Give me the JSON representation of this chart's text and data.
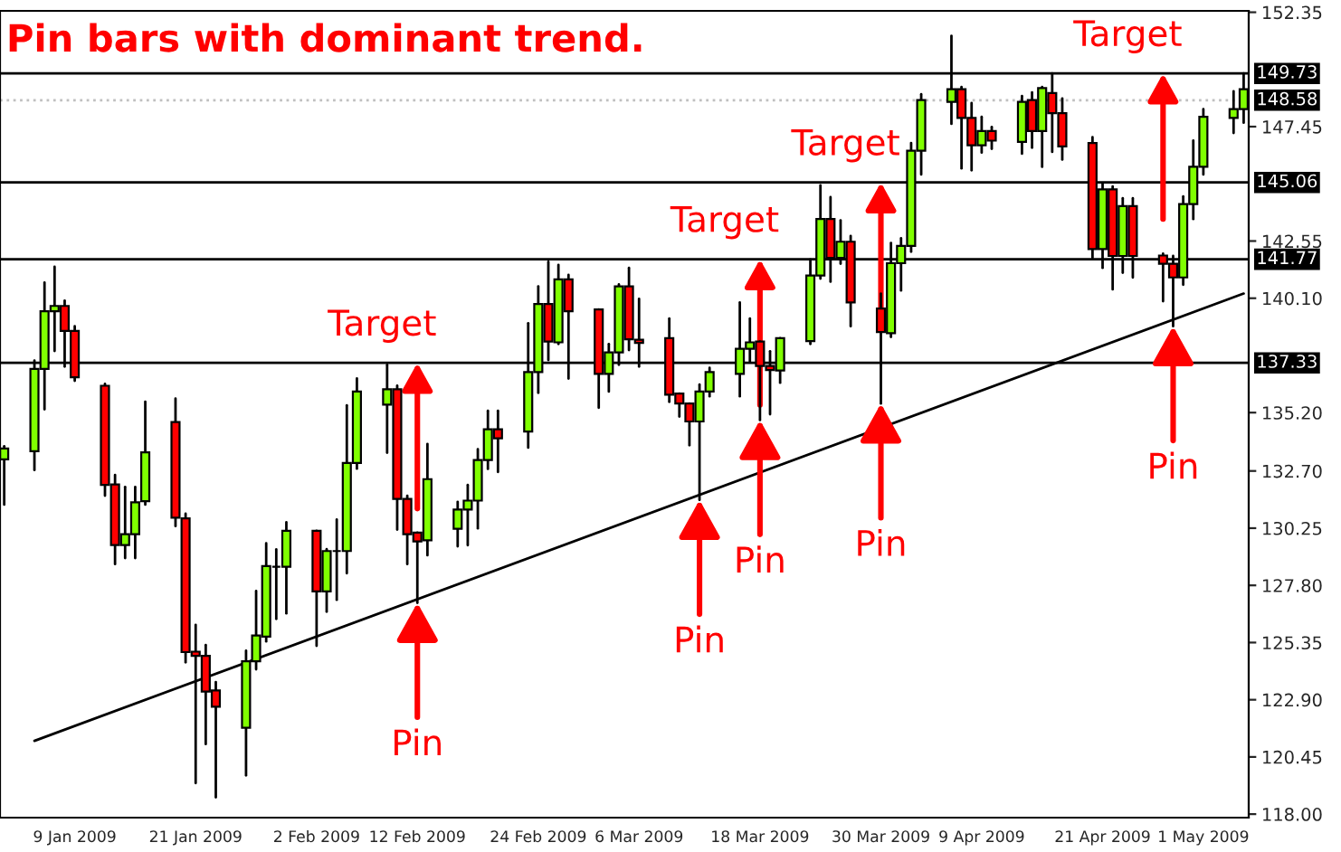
{
  "chart_data": {
    "type": "candlestick",
    "title": "Pin bars with dominant trend.",
    "x": [
      "2009-01-02",
      "2009-01-05",
      "2009-01-06",
      "2009-01-07",
      "2009-01-08",
      "2009-01-09",
      "2009-01-12",
      "2009-01-13",
      "2009-01-14",
      "2009-01-15",
      "2009-01-16",
      "2009-01-19",
      "2009-01-20",
      "2009-01-21",
      "2009-01-22",
      "2009-01-23",
      "2009-01-26",
      "2009-01-27",
      "2009-01-28",
      "2009-01-29",
      "2009-01-30",
      "2009-02-02",
      "2009-02-03",
      "2009-02-04",
      "2009-02-05",
      "2009-02-06",
      "2009-02-09",
      "2009-02-10",
      "2009-02-11",
      "2009-02-12",
      "2009-02-13",
      "2009-02-16",
      "2009-02-17",
      "2009-02-18",
      "2009-02-19",
      "2009-02-20",
      "2009-02-23",
      "2009-02-24",
      "2009-02-25",
      "2009-02-26",
      "2009-02-27",
      "2009-03-02",
      "2009-03-03",
      "2009-03-04",
      "2009-03-05",
      "2009-03-06",
      "2009-03-09",
      "2009-03-10",
      "2009-03-11",
      "2009-03-12",
      "2009-03-13",
      "2009-03-16",
      "2009-03-17",
      "2009-03-18",
      "2009-03-19",
      "2009-03-20",
      "2009-03-23",
      "2009-03-24",
      "2009-03-25",
      "2009-03-26",
      "2009-03-27",
      "2009-03-30",
      "2009-03-31",
      "2009-04-01",
      "2009-04-02",
      "2009-04-03",
      "2009-04-06",
      "2009-04-07",
      "2009-04-08",
      "2009-04-09",
      "2009-04-10",
      "2009-04-13",
      "2009-04-14",
      "2009-04-15",
      "2009-04-16",
      "2009-04-17",
      "2009-04-20",
      "2009-04-21",
      "2009-04-22",
      "2009-04-23",
      "2009-04-24",
      "2009-04-27",
      "2009-04-28",
      "2009-04-29",
      "2009-04-30",
      "2009-05-01",
      "2009-05-04",
      "2009-05-05"
    ],
    "ohlc": [
      [
        133.2,
        133.76,
        131.26,
        133.66
      ],
      [
        133.55,
        137.43,
        132.74,
        137.07
      ],
      [
        137.07,
        140.77,
        135.34,
        139.54
      ],
      [
        139.54,
        141.45,
        137.84,
        139.77
      ],
      [
        139.77,
        140.0,
        137.17,
        138.7
      ],
      [
        138.7,
        138.9,
        136.56,
        136.71
      ],
      [
        136.35,
        136.43,
        131.64,
        132.1
      ],
      [
        132.12,
        132.53,
        128.71,
        129.53
      ],
      [
        129.53,
        132.02,
        128.97,
        129.99
      ],
      [
        129.99,
        132.02,
        128.97,
        131.36
      ],
      [
        131.41,
        135.67,
        131.26,
        133.5
      ],
      [
        134.8,
        135.8,
        130.34,
        130.7
      ],
      [
        130.67,
        130.87,
        124.5,
        124.94
      ],
      [
        124.96,
        126.11,
        119.33,
        124.78
      ],
      [
        124.78,
        125.24,
        121.0,
        123.25
      ],
      [
        123.3,
        123.66,
        118.72,
        122.6
      ],
      [
        121.7,
        125.0,
        119.66,
        124.55
      ],
      [
        124.55,
        127.56,
        124.2,
        125.65
      ],
      [
        125.6,
        129.6,
        125.4,
        128.63
      ],
      [
        128.6,
        129.34,
        126.36,
        128.6
      ],
      [
        128.6,
        130.5,
        126.6,
        130.14
      ],
      [
        130.14,
        130.14,
        125.21,
        127.54
      ],
      [
        127.54,
        129.35,
        126.67,
        129.27
      ],
      [
        129.27,
        130.62,
        127.18,
        129.27
      ],
      [
        129.27,
        135.51,
        128.32,
        133.04
      ],
      [
        133.04,
        136.66,
        132.8,
        136.1
      ],
      [
        135.54,
        137.25,
        133.48,
        136.2
      ],
      [
        136.2,
        136.35,
        130.19,
        131.5
      ],
      [
        131.5,
        131.64,
        128.71,
        129.99
      ],
      [
        130.06,
        130.06,
        127.05,
        129.68
      ],
      [
        129.73,
        133.86,
        129.09,
        132.35
      ],
      [
        130.22,
        131.38,
        129.47,
        131.05
      ],
      [
        131.05,
        132.1,
        129.52,
        131.43
      ],
      [
        131.43,
        133.63,
        130.24,
        133.17
      ],
      [
        133.17,
        135.28,
        132.79,
        134.49
      ],
      [
        134.49,
        135.28,
        132.66,
        134.1
      ],
      [
        134.39,
        139.03,
        133.7,
        136.94
      ],
      [
        136.94,
        140.61,
        136.05,
        139.85
      ],
      [
        139.85,
        141.66,
        137.45,
        138.24
      ],
      [
        138.21,
        141.53,
        138.14,
        140.91
      ],
      [
        140.91,
        141.1,
        136.66,
        139.54
      ],
      [
        139.62,
        139.62,
        135.41,
        136.86
      ],
      [
        136.86,
        138.14,
        136.1,
        137.78
      ],
      [
        137.78,
        140.69,
        137.25,
        140.61
      ],
      [
        140.61,
        141.4,
        137.88,
        138.34
      ],
      [
        138.32,
        140.07,
        137.17,
        138.19
      ],
      [
        138.39,
        139.23,
        135.66,
        135.97
      ],
      [
        136.02,
        136.02,
        135.03,
        135.59
      ],
      [
        135.59,
        135.59,
        133.8,
        134.82
      ],
      [
        134.82,
        136.4,
        131.46,
        136.1
      ],
      [
        136.1,
        137.12,
        135.9,
        136.94
      ],
      [
        136.86,
        139.92,
        135.9,
        137.93
      ],
      [
        137.93,
        139.23,
        137.37,
        138.21
      ],
      [
        138.24,
        138.24,
        134.88,
        137.2
      ],
      [
        137.2,
        137.83,
        135.13,
        137.02
      ],
      [
        137.0,
        138.39,
        136.48,
        138.39
      ],
      [
        138.26,
        141.76,
        138.14,
        141.07
      ],
      [
        141.07,
        144.94,
        140.94,
        143.49
      ],
      [
        143.49,
        144.43,
        140.81,
        141.83
      ],
      [
        141.83,
        143.44,
        141.58,
        142.52
      ],
      [
        142.52,
        142.77,
        138.9,
        139.92
      ],
      [
        139.66,
        140.3,
        135.59,
        138.65
      ],
      [
        138.6,
        142.47,
        138.44,
        141.6
      ],
      [
        141.6,
        142.67,
        140.43,
        142.34
      ],
      [
        142.34,
        146.75,
        142.09,
        146.42
      ],
      [
        146.42,
        148.84,
        145.4,
        148.59
      ],
      [
        148.51,
        151.34,
        147.57,
        149.05
      ],
      [
        149.05,
        149.15,
        145.66,
        147.82
      ],
      [
        147.82,
        148.46,
        145.58,
        146.65
      ],
      [
        146.65,
        147.87,
        146.34,
        147.26
      ],
      [
        147.26,
        147.44,
        146.5,
        146.85
      ],
      [
        146.8,
        148.76,
        146.29,
        148.51
      ],
      [
        148.59,
        148.92,
        146.55,
        147.26
      ],
      [
        147.26,
        149.15,
        145.73,
        149.1
      ],
      [
        148.89,
        149.73,
        146.37,
        148.03
      ],
      [
        148.03,
        148.66,
        146.04,
        146.6
      ],
      [
        146.75,
        147.0,
        141.83,
        142.21
      ],
      [
        142.21,
        145.02,
        141.4,
        144.76
      ],
      [
        144.76,
        144.89,
        140.48,
        141.91
      ],
      [
        141.91,
        144.38,
        141.19,
        144.05
      ],
      [
        144.05,
        144.38,
        140.99,
        141.91
      ],
      [
        141.93,
        142.01,
        139.97,
        141.58
      ],
      [
        141.58,
        141.91,
        138.9,
        140.99
      ],
      [
        140.99,
        144.46,
        140.68,
        144.13
      ],
      [
        144.13,
        146.85,
        143.49,
        145.73
      ],
      [
        145.73,
        148.2,
        145.4,
        147.87
      ],
      [
        147.82,
        148.97,
        147.18,
        148.2
      ],
      [
        148.2,
        149.73,
        147.62,
        149.05
      ]
    ],
    "colors": [
      "#80ff00",
      "#80ff00",
      "#80ff00",
      "#80ff00",
      "#ff0000",
      "#ff0000",
      "#ff0000",
      "#ff0000",
      "#80ff00",
      "#80ff00",
      "#80ff00",
      "#ff0000",
      "#ff0000",
      "#ff0000",
      "#ff0000",
      "#ff0000",
      "#80ff00",
      "#80ff00",
      "#80ff00",
      "#000000",
      "#80ff00",
      "#ff0000",
      "#80ff00",
      "#000000",
      "#80ff00",
      "#80ff00",
      "#80ff00",
      "#ff0000",
      "#ff0000",
      "#ff0000",
      "#80ff00",
      "#80ff00",
      "#80ff00",
      "#80ff00",
      "#80ff00",
      "#ff0000",
      "#80ff00",
      "#80ff00",
      "#ff0000",
      "#80ff00",
      "#ff0000",
      "#ff0000",
      "#80ff00",
      "#80ff00",
      "#ff0000",
      "#ff0000",
      "#ff0000",
      "#ff0000",
      "#ff0000",
      "#80ff00",
      "#80ff00",
      "#80ff00",
      "#80ff00",
      "#ff0000",
      "#ff0000",
      "#80ff00",
      "#80ff00",
      "#80ff00",
      "#ff0000",
      "#80ff00",
      "#ff0000",
      "#ff0000",
      "#80ff00",
      "#80ff00",
      "#80ff00",
      "#80ff00",
      "#80ff00",
      "#ff0000",
      "#ff0000",
      "#80ff00",
      "#ff0000",
      "#80ff00",
      "#ff0000",
      "#80ff00",
      "#ff0000",
      "#ff0000",
      "#ff0000",
      "#80ff00",
      "#ff0000",
      "#80ff00",
      "#ff0000",
      "#ff0000",
      "#ff0000",
      "#80ff00",
      "#80ff00",
      "#80ff00",
      "#80ff00",
      "#80ff00"
    ],
    "series": [
      {
        "type": "line",
        "color": "#000000",
        "x": [
          "2009-01-05",
          "2009-05-05"
        ],
        "values": [
          121.14,
          140.3
        ]
      }
    ],
    "xlim": [
      "2009-01-01T14:00",
      "2009-05-05T12:00"
    ],
    "xticks": [
      {
        "value": "2009-01-09",
        "label": "9 Jan 2009"
      },
      {
        "value": "2009-01-21",
        "label": "21 Jan 2009"
      },
      {
        "value": "2009-02-02",
        "label": "2 Feb 2009"
      },
      {
        "value": "2009-02-12",
        "label": "12 Feb 2009"
      },
      {
        "value": "2009-02-24",
        "label": "24 Feb 2009"
      },
      {
        "value": "2009-03-06",
        "label": "6 Mar 2009"
      },
      {
        "value": "2009-03-18",
        "label": "18 Mar 2009"
      },
      {
        "value": "2009-03-30",
        "label": "30 Mar 2009"
      },
      {
        "value": "2009-04-09",
        "label": "9 Apr 2009"
      },
      {
        "value": "2009-04-21",
        "label": "21 Apr 2009"
      },
      {
        "value": "2009-05-01",
        "label": "1 May 2009"
      }
    ],
    "ylim": [
      117.85,
      152.41
    ],
    "yticks": [
      {
        "value": 118.0,
        "label": "118.00"
      },
      {
        "value": 120.45,
        "label": "120.45"
      },
      {
        "value": 122.9,
        "label": "122.90"
      },
      {
        "value": 125.35,
        "label": "125.35"
      },
      {
        "value": 127.8,
        "label": "127.80"
      },
      {
        "value": 130.25,
        "label": "130.25"
      },
      {
        "value": 132.7,
        "label": "132.70"
      },
      {
        "value": 135.2,
        "label": "135.20"
      },
      {
        "value": 140.1,
        "label": "140.10"
      },
      {
        "value": 142.55,
        "label": "142.55"
      },
      {
        "value": 147.45,
        "label": "147.45"
      },
      {
        "value": 152.35,
        "label": "152.35"
      }
    ],
    "ref_lines": [
      {
        "axis": "y",
        "value": 149.73,
        "label": "149.73",
        "color": "#000000"
      },
      {
        "axis": "y",
        "value": 148.58,
        "label": "148.58",
        "color": "#c0c0c0",
        "line_style": "dotted"
      },
      {
        "axis": "y",
        "value": 145.06,
        "label": "145.06",
        "color": "#000000"
      },
      {
        "axis": "y",
        "value": 141.77,
        "label": "141.77",
        "color": "#000000"
      },
      {
        "axis": "y",
        "value": 137.33,
        "label": "137.33",
        "color": "#000000"
      }
    ],
    "annotations": [
      {
        "text": "Target",
        "x": "2009-02-12",
        "y": 137.33
      },
      {
        "text": "Target",
        "x": "2009-03-18",
        "y": 141.77
      },
      {
        "text": "Target",
        "x": "2009-03-30",
        "y": 145.06
      },
      {
        "text": "Target",
        "x": "2009-04-27",
        "y": 149.73
      },
      {
        "text": "Pin",
        "x": "2009-02-12",
        "y": 127.05
      },
      {
        "text": "Pin",
        "x": "2009-03-12",
        "y": 131.46
      },
      {
        "text": "Pin",
        "x": "2009-03-18",
        "y": 134.88
      },
      {
        "text": "Pin",
        "x": "2009-03-30",
        "y": 135.59
      },
      {
        "text": "Pin",
        "x": "2009-04-28",
        "y": 138.9
      }
    ],
    "grid": false,
    "legend": false
  }
}
